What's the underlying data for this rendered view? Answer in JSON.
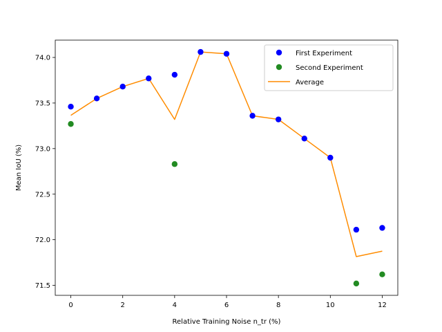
{
  "chart_data": {
    "type": "scatter",
    "xlabel": "Relative Training Noise n_tr (%)",
    "ylabel": "Mean IoU (%)",
    "xlim": [
      -0.6,
      12.6
    ],
    "ylim": [
      71.39,
      74.19
    ],
    "xticks": [
      0,
      2,
      4,
      6,
      8,
      10,
      12
    ],
    "yticks": [
      71.5,
      72.0,
      72.5,
      73.0,
      73.5,
      74.0
    ],
    "ytick_labels": [
      "71.5",
      "72.0",
      "72.5",
      "73.0",
      "73.5",
      "74.0"
    ],
    "grid": false,
    "legend_position": "top-right",
    "series": [
      {
        "name": "First Experiment",
        "kind": "scatter",
        "color": "#0000ff",
        "x": [
          0,
          1,
          2,
          3,
          4,
          5,
          6,
          7,
          8,
          9,
          10,
          11,
          12
        ],
        "y": [
          73.46,
          73.55,
          73.68,
          73.77,
          73.81,
          74.06,
          74.04,
          73.36,
          73.32,
          73.11,
          72.9,
          72.11,
          72.13
        ]
      },
      {
        "name": "Second Experiment",
        "kind": "scatter",
        "color": "#228b22",
        "x": [
          0,
          4,
          11,
          12
        ],
        "y": [
          73.27,
          72.83,
          71.52,
          71.62
        ]
      },
      {
        "name": "Average",
        "kind": "line",
        "color": "#ff8c00",
        "x": [
          0,
          1,
          2,
          3,
          4,
          5,
          6,
          7,
          8,
          9,
          10,
          11,
          12
        ],
        "y": [
          73.365,
          73.55,
          73.68,
          73.77,
          73.32,
          74.06,
          74.04,
          73.36,
          73.32,
          73.11,
          72.9,
          71.815,
          71.875
        ]
      }
    ]
  }
}
